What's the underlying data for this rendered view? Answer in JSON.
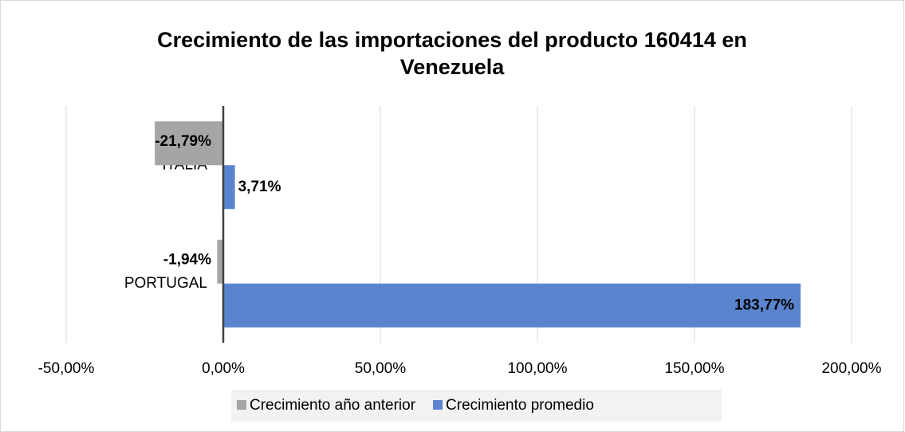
{
  "chart_data": {
    "type": "bar",
    "orientation": "horizontal",
    "title": "Crecimiento de las importaciones del producto 160414 en Venezuela",
    "categories": [
      "ITALIA",
      "PORTUGAL"
    ],
    "series": [
      {
        "name": "Crecimiento año anterior",
        "color": "#a5a5a5",
        "values": [
          -21.79,
          -1.94
        ],
        "value_labels": [
          "-21,79%",
          "-1,94%"
        ]
      },
      {
        "name": "Crecimiento promedio",
        "color": "#5b84cf",
        "values": [
          3.71,
          183.77
        ],
        "value_labels": [
          "3,71%",
          "183,77%"
        ]
      }
    ],
    "xlim": [
      -50,
      200
    ],
    "xticks": [
      {
        "value": -50,
        "label": "-50,00%"
      },
      {
        "value": 0,
        "label": "0,00%"
      },
      {
        "value": 50,
        "label": "50,00%"
      },
      {
        "value": 100,
        "label": "100,00%"
      },
      {
        "value": 150,
        "label": "150,00%"
      },
      {
        "value": 200,
        "label": "200,00%"
      }
    ],
    "grid": true,
    "legend": "bottom"
  }
}
